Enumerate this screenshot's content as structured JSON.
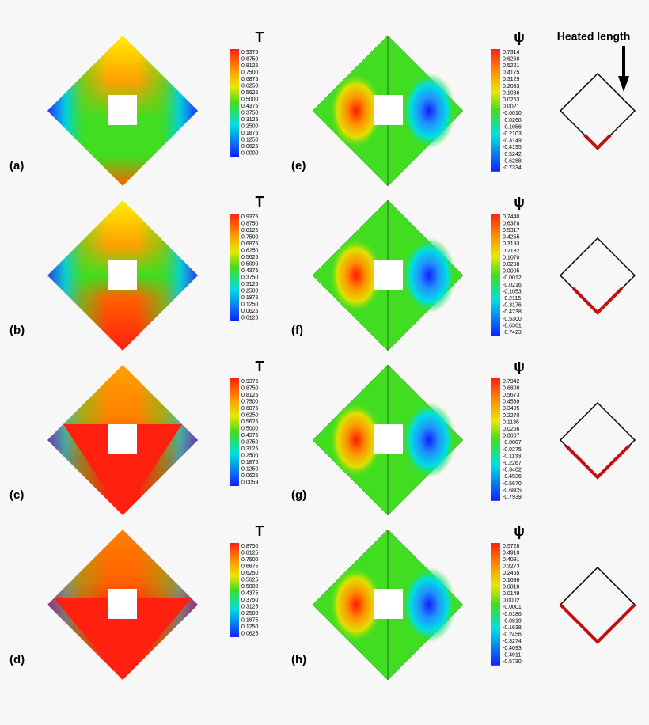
{
  "heated_length_label": "Heated length",
  "rows": [
    {
      "temperature": {
        "label": "(a)",
        "title": "T",
        "levels": [
          "0.9375",
          "0.8750",
          "0.8125",
          "0.7500",
          "0.6875",
          "0.6250",
          "0.5625",
          "0.5000",
          "0.4375",
          "0.3750",
          "0.3125",
          "0.2500",
          "0.1875",
          "0.1250",
          "0.0625",
          "0.0000"
        ]
      },
      "streamfunction": {
        "label": "(e)",
        "title": "ψ",
        "levels": [
          "0.7314",
          "0.6268",
          "0.5221",
          "0.4175",
          "0.3129",
          "0.2083",
          "0.1036",
          "0.0263",
          "0.0021",
          "-0.0010",
          "-0.0268",
          "-0.1056",
          "-0.2103",
          "-0.3149",
          "-0.4195",
          "-0.5242",
          "-0.6288",
          "-0.7334"
        ]
      }
    },
    {
      "temperature": {
        "label": "(b)",
        "title": "T",
        "levels": [
          "0.9375",
          "0.8750",
          "0.8125",
          "0.7500",
          "0.6875",
          "0.6250",
          "0.5625",
          "0.5000",
          "0.4375",
          "0.3750",
          "0.3125",
          "0.2500",
          "0.1875",
          "0.1250",
          "0.0625",
          "0.0128"
        ]
      },
      "streamfunction": {
        "label": "(f)",
        "title": "ψ",
        "levels": [
          "0.7440",
          "0.6378",
          "0.5317",
          "0.4255",
          "0.3193",
          "0.2132",
          "0.1070",
          "0.0208",
          "0.0005",
          "-0.0012",
          "-0.0216",
          "-0.1053",
          "-0.2115",
          "-0.3176",
          "-0.4238",
          "-0.5300",
          "-0.6361",
          "-0.7423"
        ]
      }
    },
    {
      "temperature": {
        "label": "(c)",
        "title": "T",
        "levels": [
          "0.9375",
          "0.8750",
          "0.8125",
          "0.7500",
          "0.6875",
          "0.6250",
          "0.5625",
          "0.5000",
          "0.4375",
          "0.3750",
          "0.3125",
          "0.2500",
          "0.1875",
          "0.1250",
          "0.0625",
          "0.0059"
        ]
      },
      "streamfunction": {
        "label": "(g)",
        "title": "ψ",
        "levels": [
          "0.7942",
          "0.6808",
          "0.5673",
          "0.4539",
          "0.3405",
          "0.2270",
          "0.1136",
          "0.0266",
          "0.0007",
          "-0.0007",
          "-0.0275",
          "-0.1133",
          "-0.2267",
          "-0.3402",
          "-0.4536",
          "-0.5670",
          "-0.6805",
          "-0.7939"
        ]
      }
    },
    {
      "temperature": {
        "label": "(d)",
        "title": "T",
        "levels": [
          "0.8750",
          "0.8125",
          "0.7500",
          "0.6875",
          "0.6250",
          "0.5625",
          "0.5000",
          "0.4375",
          "0.3750",
          "0.3125",
          "0.2500",
          "0.1875",
          "0.1250",
          "0.0625"
        ]
      },
      "streamfunction": {
        "label": "(h)",
        "title": "ψ",
        "levels": [
          "0.5728",
          "0.4910",
          "0.4091",
          "0.3273",
          "0.2455",
          "0.1636",
          "0.0818",
          "0.0149",
          "0.0002",
          "-0.0001",
          "-0.0186",
          "-0.0819",
          "-0.1638",
          "-0.2456",
          "-0.3274",
          "-0.4093",
          "-0.4911",
          "-0.5730"
        ]
      }
    }
  ]
}
